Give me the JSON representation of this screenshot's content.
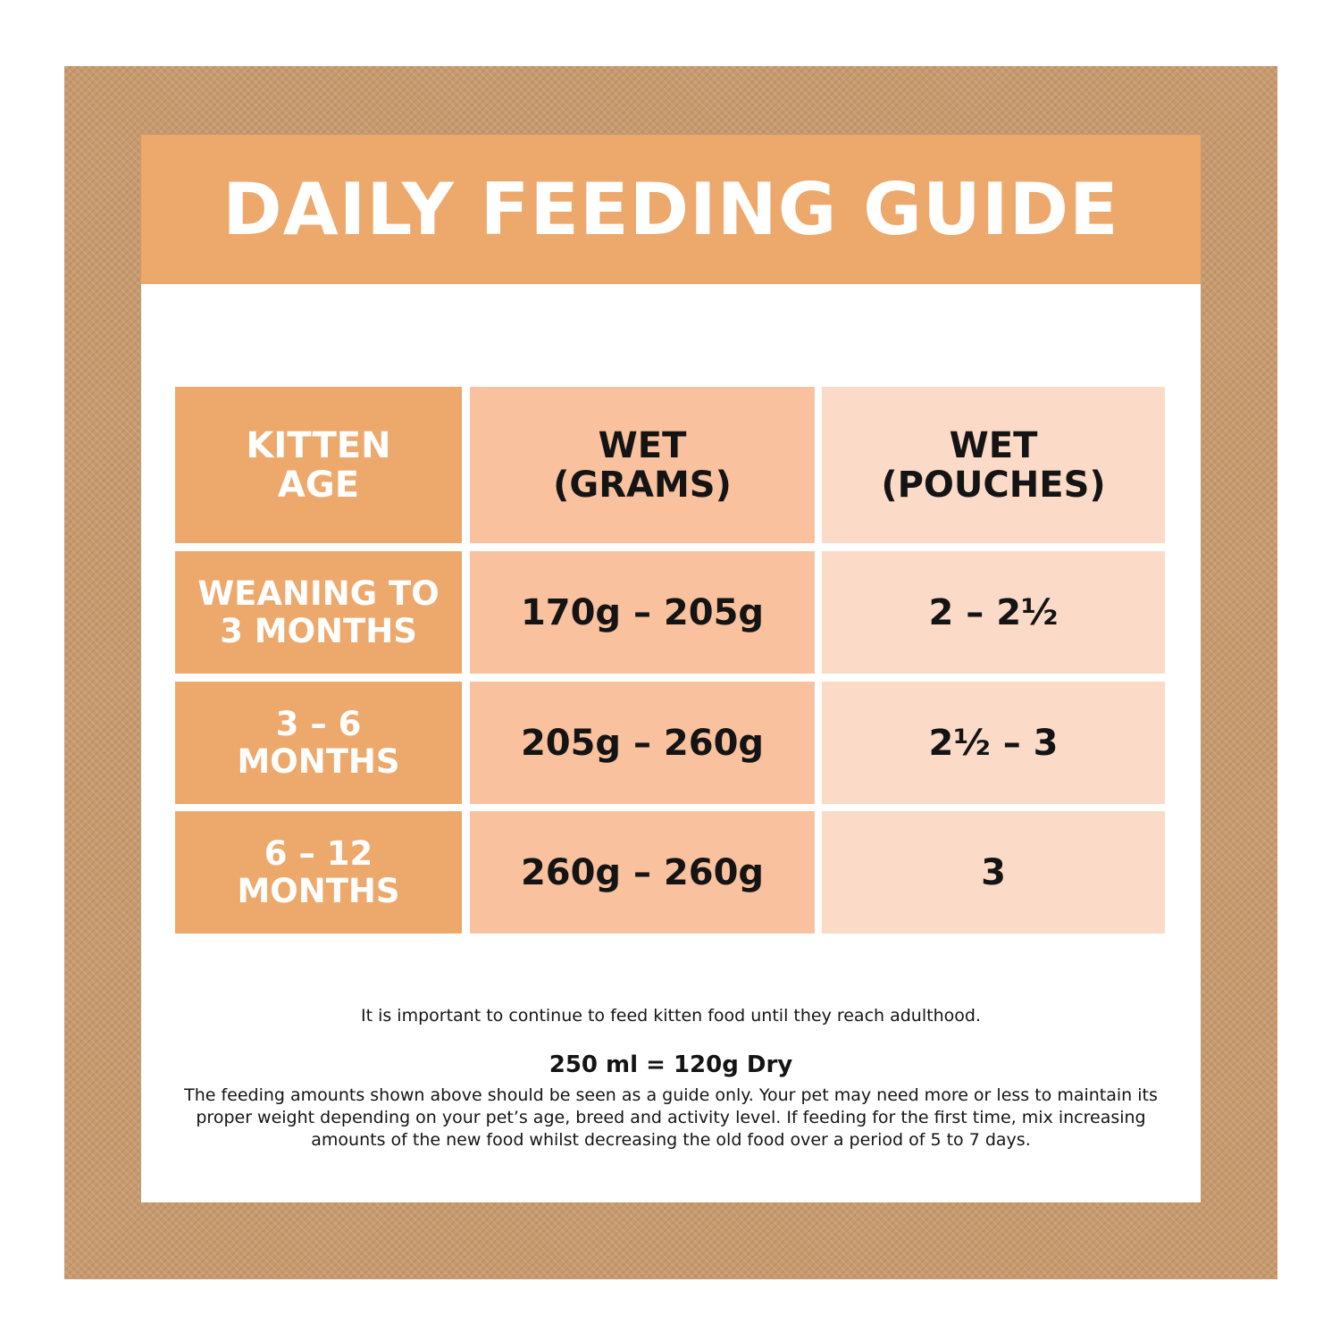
{
  "title": "DAILY FEEDING GUIDE",
  "table": {
    "headers": [
      "KITTEN\nAGE",
      "WET\n(GRAMS)",
      "WET\n(POUCHES)"
    ],
    "rows": [
      {
        "age": "WEANING TO\n3 MONTHS",
        "grams": "170g – 205g",
        "pouches": "2 – 2½"
      },
      {
        "age": "3 – 6\nMONTHS",
        "grams": "205g – 260g",
        "pouches": "2½ – 3"
      },
      {
        "age": "6 – 12\nMONTHS",
        "grams": "260g – 260g",
        "pouches": "3"
      }
    ]
  },
  "notes": {
    "adulthood": "It is important to continue to feed kitten food until they reach adulthood.",
    "conversion": "250 ml = 120g Dry",
    "disclaimer": "The feeding amounts shown above should be seen as a guide only. Your pet may need more or less to maintain its proper weight depending on your pet’s age, breed and activity level. If feeding for the first time, mix increasing amounts of the new food whilst decreasing the old food over a period of 5 to 7 days."
  },
  "colors": {
    "frame": "#c79a6e",
    "banner": "#eda86c",
    "col_age": "#eda86c",
    "col_grams": "#f9c19e",
    "col_pouches": "#fcdac8"
  }
}
